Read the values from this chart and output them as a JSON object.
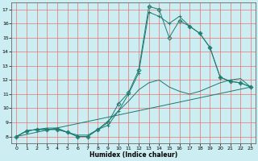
{
  "xlabel": "Humidex (Indice chaleur)",
  "bg_color": "#cceef2",
  "line_color": "#1a7a6e",
  "grid_color": "#e87070",
  "xlim": [
    -0.5,
    23.5
  ],
  "ylim": [
    7.5,
    17.5
  ],
  "xticks": [
    0,
    1,
    2,
    3,
    4,
    5,
    6,
    7,
    8,
    9,
    10,
    11,
    12,
    13,
    14,
    15,
    16,
    17,
    18,
    19,
    20,
    21,
    22,
    23
  ],
  "yticks": [
    8,
    9,
    10,
    11,
    12,
    13,
    14,
    15,
    16,
    17
  ],
  "lines": [
    {
      "x": [
        0,
        1,
        2,
        3,
        4,
        5,
        6,
        7,
        8,
        9,
        10,
        11,
        12,
        13,
        14,
        15,
        16,
        17,
        18,
        19,
        20,
        21,
        22,
        23
      ],
      "y": [
        8.0,
        8.4,
        8.5,
        8.5,
        8.5,
        8.3,
        8.0,
        8.0,
        8.5,
        8.8,
        9.8,
        11.0,
        12.5,
        16.8,
        16.5,
        16.0,
        16.5,
        15.8,
        15.3,
        14.3,
        12.2,
        11.9,
        11.8,
        11.5
      ],
      "marker": "+"
    },
    {
      "x": [
        0,
        1,
        2,
        3,
        4,
        5,
        6,
        7,
        8,
        9,
        10,
        11,
        12,
        13,
        14,
        15,
        16,
        17,
        18,
        19,
        20,
        21,
        22,
        23
      ],
      "y": [
        8.0,
        8.4,
        8.5,
        8.5,
        8.5,
        8.3,
        8.0,
        8.0,
        8.5,
        9.0,
        10.3,
        11.1,
        12.7,
        17.2,
        17.0,
        15.0,
        16.2,
        15.8,
        15.3,
        14.3,
        12.2,
        11.9,
        11.8,
        11.5
      ],
      "marker": "D"
    },
    {
      "x": [
        0,
        1,
        2,
        3,
        4,
        5,
        6,
        7,
        8,
        9,
        10,
        11,
        12,
        13,
        14,
        15,
        16,
        17,
        18,
        19,
        20,
        21,
        22,
        23
      ],
      "y": [
        8.0,
        8.4,
        8.5,
        8.6,
        8.6,
        8.3,
        8.1,
        8.1,
        8.5,
        9.1,
        9.8,
        10.5,
        11.3,
        11.8,
        12.0,
        11.5,
        11.2,
        11.0,
        11.2,
        11.5,
        11.8,
        12.0,
        12.1,
        11.5
      ],
      "marker": null
    },
    {
      "x": [
        0,
        23
      ],
      "y": [
        8.0,
        11.5
      ],
      "marker": null
    }
  ]
}
